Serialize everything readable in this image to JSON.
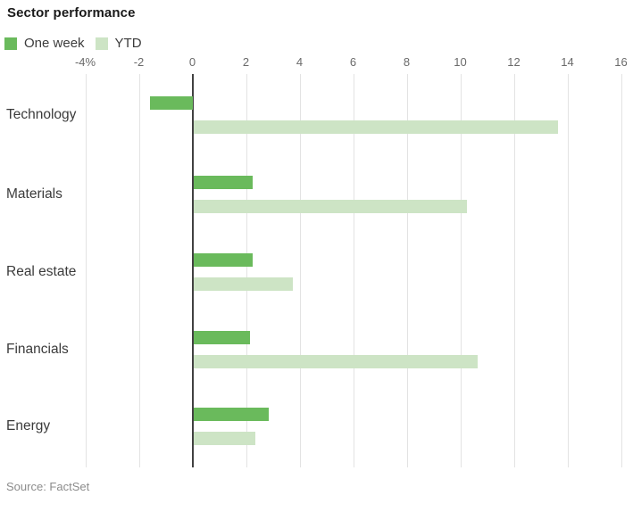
{
  "header": {
    "title": "Sector performance"
  },
  "legend": {
    "items": [
      {
        "label": "One week",
        "color": "#6aba5c"
      },
      {
        "label": "YTD",
        "color": "#cde4c5"
      }
    ]
  },
  "chart_data": {
    "type": "bar",
    "orientation": "horizontal",
    "title": "Sector performance",
    "unit": "%",
    "categories": [
      "Technology",
      "Materials",
      "Real estate",
      "Financials",
      "Energy"
    ],
    "series": [
      {
        "name": "One week",
        "color": "#6aba5c",
        "values": [
          -1.6,
          2.2,
          2.2,
          2.1,
          2.8
        ]
      },
      {
        "name": "YTD",
        "color": "#cde4c5",
        "values": [
          13.6,
          10.2,
          3.7,
          10.6,
          2.3
        ]
      }
    ],
    "x_ticks": [
      "-4%",
      "-2",
      "0",
      "2",
      "4",
      "6",
      "8",
      "10",
      "12",
      "14",
      "16"
    ],
    "x_tick_values": [
      -4,
      -2,
      0,
      2,
      4,
      6,
      8,
      10,
      12,
      14,
      16
    ],
    "xlim": [
      -4.2,
      16.4
    ],
    "grid": true,
    "legend_position": "top-left",
    "zero_axis": true
  },
  "footer": {
    "source": "Source: FactSet"
  }
}
